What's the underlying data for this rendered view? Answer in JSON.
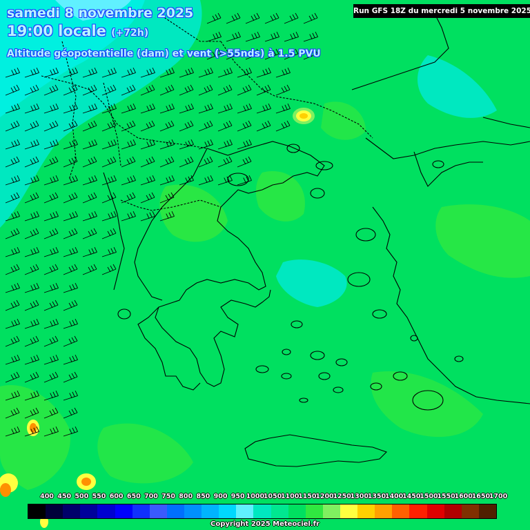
{
  "header": {
    "date_line": "samedi 8 novembre 2025",
    "time_line": "19:00 locale",
    "time_offset": "(+72h)",
    "field_line": "Altitude géopotentielle (dam) et vent (>55nds) à 1.5 PVU"
  },
  "run_info": "Run GFS 18Z du mercredi 5 novembre 2025",
  "legend": {
    "labels": [
      "400",
      "450",
      "500",
      "550",
      "600",
      "650",
      "700",
      "750",
      "800",
      "850",
      "900",
      "950",
      "1000",
      "1050",
      "1100",
      "1150",
      "1200",
      "1250",
      "1300",
      "1350",
      "1400",
      "1450",
      "1500",
      "1550",
      "1600",
      "1650",
      "1700"
    ],
    "colors": [
      "#000000",
      "#00003a",
      "#00006a",
      "#00009a",
      "#0000d0",
      "#0000ff",
      "#1030ff",
      "#3a5aff",
      "#0070ff",
      "#0090ff",
      "#00b4ff",
      "#00d8ff",
      "#60f0ff",
      "#00e8c0",
      "#00e890",
      "#00e060",
      "#30e840",
      "#80f060",
      "#ffff40",
      "#ffd000",
      "#ffa000",
      "#ff6000",
      "#ff2000",
      "#e00000",
      "#b00000",
      "#803000",
      "#502000"
    ]
  },
  "copyright": "Copyright 2025 Meteociel.fr",
  "colors": {
    "field_base": "#00e060",
    "field_cyan": "#00e8c0",
    "field_cyan_deep": "#00f0e0",
    "field_light": "#60f080",
    "hot_yellow": "#ffff40",
    "hot_orange": "#ff9000",
    "coast_line": "#000000"
  }
}
